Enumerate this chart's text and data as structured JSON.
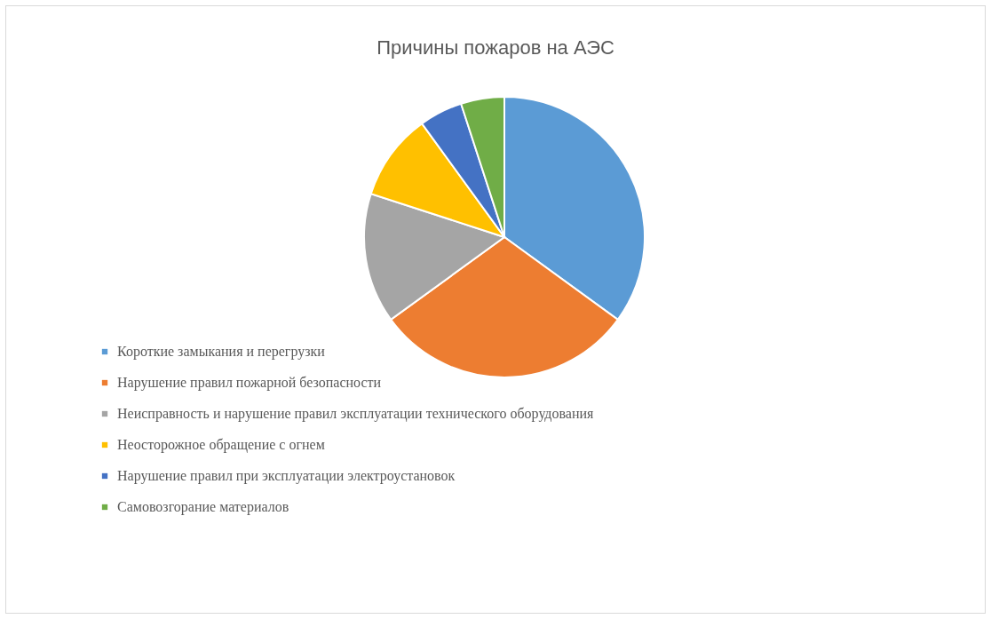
{
  "chart_data": {
    "type": "pie",
    "title": "Причины пожаров на АЭС",
    "categories": [
      "Короткие замыкания и перегрузки",
      "Нарушение правил пожарной безопасности",
      "Неисправность и нарушение правил эксплуатации технического оборудования",
      "Неосторожное обращение с огнем",
      "Нарушение правил при эксплуатации электроустановок",
      "Самовозгорание материалов"
    ],
    "values": [
      35,
      30,
      15,
      10,
      5,
      5
    ],
    "colors": [
      "#5b9bd5",
      "#ed7d31",
      "#a5a5a5",
      "#ffc000",
      "#4472c4",
      "#70ad47"
    ],
    "legend": "bottom left"
  }
}
